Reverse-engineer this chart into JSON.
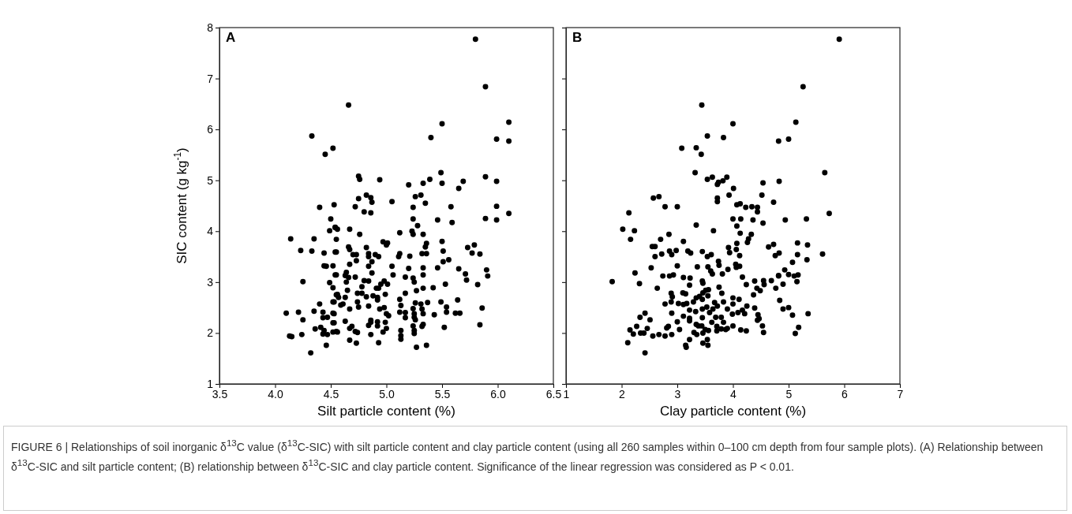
{
  "chart_data": [
    {
      "type": "scatter",
      "title": "A",
      "xlabel": "Silt particle content (%)",
      "ylabel": "SIC content (g kg$^{-1}$)",
      "marker": "circle",
      "grid": false,
      "xlim": [
        3.5,
        6.5
      ],
      "xticks": [
        3.5,
        {
          "value": 4,
          "label": "4.0"
        },
        4.5,
        {
          "value": 5,
          "label": "5.0"
        },
        5.5,
        {
          "value": 6,
          "label": "6.0"
        },
        6.5
      ],
      "ylim": [
        1,
        8
      ],
      "yticks": [
        1,
        2,
        3,
        4,
        5,
        6,
        7,
        8
      ],
      "series": [
        {
          "color": "#000000",
          "x": [
            4.33,
            4.52,
            4.45,
            4.4,
            4.53,
            4.5,
            4.49,
            4.54,
            4.14,
            4.35,
            4.23,
            4.33,
            4.44,
            4.54,
            4.44,
            4.46,
            4.52,
            4.54,
            4.25,
            4.49,
            4.52,
            4.55,
            4.4,
            4.52,
            4.1,
            4.21,
            4.35,
            4.43,
            4.25,
            4.43,
            4.47,
            4.52,
            4.52,
            4.36,
            4.41,
            4.44,
            4.52,
            4.55,
            4.13,
            4.15,
            4.24,
            4.43,
            4.47,
            4.46,
            4.32,
            5.8,
            5.89,
            4.66,
            5.5,
            6.1,
            5.4,
            5.99,
            6.1,
            4.75,
            4.76,
            4.94,
            5.2,
            5.33,
            5.39,
            5.49,
            5.5,
            5.65,
            5.69,
            5.89,
            5.99,
            4.75,
            4.82,
            4.86,
            4.87,
            5.05,
            4.72,
            4.8,
            4.86,
            5.26,
            5.31,
            5.35,
            5.24,
            5.58,
            5.99,
            6.1,
            5.89,
            5.99,
            5.46,
            5.59,
            5.24,
            5.28,
            5.12,
            5.23,
            5.24,
            5.33,
            5.5,
            5.36,
            5.35,
            5.32,
            5.36,
            5.51,
            5.73,
            5.79,
            5.77,
            5.84,
            4.67,
            4.76,
            4.54,
            4.56,
            4.55,
            4.66,
            4.67,
            4.7,
            4.73,
            4.73,
            4.82,
            4.84,
            4.84,
            4.87,
            4.9,
            4.93,
            4.97,
            5.0,
            5.01,
            5.12,
            5.11,
            5.21,
            4.55,
            4.67,
            4.84,
            4.87,
            5.05,
            5.06,
            5.2,
            5.33,
            5.46,
            5.51,
            5.56,
            5.65,
            5.71,
            5.72,
            5.9,
            5.91,
            5.82,
            4.55,
            4.63,
            4.64,
            4.66,
            4.64,
            4.72,
            4.8,
            4.84,
            4.78,
            4.95,
            4.98,
            5.01,
            4.91,
            4.93,
            5.17,
            5.24,
            5.25,
            5.33,
            5.33,
            5.42,
            5.53,
            5.27,
            5.17,
            4.65,
            4.56,
            4.57,
            4.63,
            4.74,
            4.78,
            4.82,
            4.88,
            4.92,
            4.99,
            4.92,
            4.53,
            4.59,
            4.61,
            4.74,
            4.75,
            4.84,
            4.67,
            4.94,
            4.98,
            5.0,
            5.02,
            5.12,
            5.13,
            5.24,
            5.26,
            5.31,
            5.32,
            5.37,
            5.49,
            5.54,
            5.54,
            5.64,
            5.62,
            5.66,
            5.86,
            5.12,
            5.17,
            5.17,
            5.25,
            5.25,
            5.33,
            5.43,
            5.26,
            4.53,
            4.53,
            4.63,
            4.67,
            4.69,
            4.72,
            4.74,
            4.84,
            4.86,
            4.86,
            4.92,
            4.92,
            4.97,
            4.99,
            5.0,
            5.13,
            5.13,
            5.13,
            5.24,
            5.25,
            5.25,
            5.33,
            5.32,
            5.52,
            5.84,
            4.56,
            4.67,
            4.73,
            4.86,
            4.93,
            5.27,
            5.36
          ],
          "values": [
            5.87,
            5.63,
            5.51,
            4.47,
            4.52,
            4.24,
            4.01,
            4.08,
            3.85,
            3.85,
            3.62,
            3.61,
            3.57,
            3.59,
            3.32,
            3.31,
            3.32,
            3.14,
            3.01,
            2.99,
            2.89,
            2.75,
            2.57,
            2.61,
            2.39,
            2.41,
            2.43,
            2.41,
            2.26,
            2.3,
            2.31,
            2.39,
            2.2,
            2.08,
            2.11,
            2.05,
            2.02,
            2.03,
            1.94,
            1.93,
            1.97,
            1.98,
            1.97,
            1.76,
            1.61,
            7.77,
            6.84,
            6.48,
            6.11,
            6.14,
            5.84,
            5.81,
            5.77,
            5.08,
            5.02,
            5.01,
            4.91,
            4.94,
            5.02,
            5.15,
            4.94,
            4.84,
            4.98,
            5.07,
            4.98,
            4.64,
            4.71,
            4.66,
            4.57,
            4.58,
            4.48,
            4.38,
            4.36,
            4.68,
            4.71,
            4.55,
            4.47,
            4.48,
            4.49,
            4.35,
            4.25,
            4.22,
            4.22,
            4.17,
            4.24,
            4.11,
            3.97,
            4.0,
            3.94,
            3.94,
            3.8,
            3.76,
            3.69,
            3.56,
            3.56,
            3.61,
            3.68,
            3.73,
            3.57,
            3.55,
            4.04,
            3.94,
            4.07,
            4.04,
            3.84,
            3.69,
            3.64,
            3.54,
            3.54,
            3.42,
            3.68,
            3.56,
            3.5,
            3.4,
            3.54,
            3.5,
            3.79,
            3.73,
            3.77,
            3.56,
            3.5,
            3.51,
            3.59,
            3.35,
            3.31,
            3.18,
            3.31,
            3.14,
            3.27,
            3.28,
            3.28,
            3.4,
            3.44,
            3.26,
            3.16,
            3.04,
            3.24,
            3.12,
            2.95,
            3.14,
            3.13,
            3.19,
            3.09,
            3.0,
            3.1,
            3.03,
            3.02,
            2.91,
            2.96,
            3.02,
            2.96,
            2.88,
            2.88,
            3.1,
            3.08,
            3.0,
            3.14,
            2.88,
            2.89,
            2.96,
            2.83,
            2.78,
            2.84,
            2.76,
            2.7,
            2.7,
            2.78,
            2.78,
            2.71,
            2.73,
            2.7,
            2.76,
            2.65,
            2.61,
            2.55,
            2.57,
            2.61,
            2.51,
            2.53,
            2.47,
            2.47,
            2.5,
            2.38,
            2.34,
            2.66,
            2.54,
            2.48,
            2.59,
            2.57,
            2.47,
            2.6,
            2.61,
            2.51,
            2.41,
            2.65,
            2.39,
            2.39,
            2.49,
            2.41,
            2.4,
            2.3,
            2.38,
            2.31,
            2.38,
            2.36,
            2.26,
            2.38,
            2.2,
            2.23,
            2.09,
            2.13,
            2.03,
            2.01,
            2.15,
            2.25,
            2.21,
            2.22,
            2.14,
            2.02,
            2.21,
            2.09,
            2.05,
            1.95,
            1.88,
            2.14,
            2.05,
            1.99,
            2.17,
            2.13,
            2.11,
            2.16,
            2.02,
            1.86,
            1.8,
            1.97,
            1.81,
            1.72,
            1.76
          ]
        }
      ],
      "annotations": [
        "FIGURE 6 | Relationships of soil inorganic δ$^{13}$C value (δ$^{13}$C-SIC) with silt particle content and clay particle content (using all 260 samples within 0–100 cm depth from four sample plots). (A) Relationship between δ$^{13}$C-SIC and silt particle content; (B) relationship between δ$^{13}$C-SIC and clay particle content. Significance of the linear regression was considered as P < 0.01."
      ]
    },
    {
      "type": "scatter",
      "title": "B",
      "xlabel": "Clay particle content (%)",
      "marker": "circle",
      "grid": false,
      "tick_labels": "x",
      "xlim": [
        1,
        7
      ],
      "xticks": [
        1,
        2,
        3,
        4,
        5,
        6,
        7
      ],
      "ylim": [
        1,
        8
      ],
      "yticks": [
        1,
        2,
        3,
        4,
        5,
        6,
        7,
        8
      ],
      "series": [
        {
          "color": "#000000",
          "x": [
            3.44,
            4.0,
            3.54,
            3.83,
            4.82,
            3.08,
            3.34,
            3.43,
            3.32,
            3.54,
            3.63,
            3.72,
            3.74,
            3.82,
            3.89,
            4.01,
            4.54,
            4.83,
            2.57,
            2.67,
            2.78,
            3.0,
            3.72,
            3.72,
            3.93,
            4.07,
            4.13,
            4.23,
            4.34,
            4.44,
            4.44,
            4.52,
            4.73,
            2.13,
            2.02,
            2.23,
            2.16,
            3.34,
            3.65,
            4.0,
            4.14,
            4.36,
            4.54,
            4.07,
            4.13,
            4.33,
            4.28,
            4.26,
            2.7,
            2.85,
            2.55,
            2.6,
            2.6,
            2.72,
            2.86,
            2.9,
            2.98,
            3.11,
            3.19,
            3.24,
            3.45,
            3.54,
            3.61,
            3.74,
            3.75,
            3.92,
            3.94,
            4.06,
            4.12,
            4.07,
            4.64,
            4.73,
            4.83,
            4.76,
            2.53,
            2.24,
            2.32,
            1.83,
            2.64,
            2.74,
            2.86,
            2.93,
            3.0,
            3.11,
            3.23,
            3.22,
            3.36,
            3.55,
            3.6,
            3.63,
            3.81,
            3.91,
            4.05,
            4.06,
            4.12,
            4.17,
            4.24,
            4.39,
            4.55,
            4.56,
            4.69,
            4.82,
            3.45,
            3.46,
            3.75,
            4.43,
            4.49,
            4.37,
            4.77,
            2.89,
            2.91,
            2.78,
            2.89,
            3.02,
            3.1,
            3.15,
            3.11,
            3.17,
            3.22,
            3.29,
            3.34,
            3.4,
            3.46,
            3.51,
            3.56,
            3.45,
            3.55,
            3.67,
            3.72,
            3.8,
            3.83,
            4.0,
            4.11,
            4.0,
            3.9,
            4.17,
            4.25,
            4.39,
            3.45,
            3.53,
            3.58,
            3.64,
            2.9,
            3.33,
            3.99,
            4.09,
            4.21,
            4.45,
            3.11,
            3.22,
            3.22,
            3.45,
            3.69,
            3.79,
            3.0,
            3.04,
            3.34,
            3.38,
            3.44,
            3.62,
            3.71,
            3.83,
            3.9,
            4.0,
            4.14,
            4.24,
            4.44,
            4.47,
            4.53,
            4.55,
            3.3,
            3.35,
            3.46,
            3.5,
            3.56,
            3.71,
            3.79,
            3.87,
            2.33,
            2.42,
            2.51,
            2.27,
            2.15,
            2.21,
            2.34,
            2.4,
            2.46,
            2.56,
            2.67,
            2.78,
            2.81,
            2.84,
            2.9,
            2.11,
            2.42,
            3.15,
            3.16,
            3.22,
            3.46,
            3.55,
            3.54,
            5.91,
            5.26,
            5.13,
            5.0,
            5.65,
            5.73,
            4.94,
            5.32,
            5.16,
            5.34,
            5.16,
            5.61,
            5.33,
            5.07,
            4.93,
            5.0,
            4.82,
            5.1,
            5.17,
            5.15,
            4.9,
            4.84,
            4.9,
            5.0,
            5.07,
            5.35,
            5.18,
            5.12
          ],
          "values": [
            6.48,
            6.11,
            5.87,
            5.84,
            5.77,
            5.63,
            5.64,
            5.51,
            5.15,
            5.02,
            5.06,
            4.92,
            4.96,
            4.99,
            5.06,
            4.84,
            4.95,
            4.98,
            4.65,
            4.68,
            4.48,
            4.48,
            4.65,
            4.58,
            4.71,
            4.52,
            4.54,
            4.47,
            4.48,
            4.47,
            4.38,
            4.71,
            4.57,
            4.36,
            4.04,
            4.01,
            3.84,
            4.12,
            4.01,
            4.24,
            4.24,
            4.22,
            4.16,
            4.1,
            3.96,
            3.94,
            3.85,
            3.78,
            3.84,
            3.94,
            3.7,
            3.7,
            3.5,
            3.55,
            3.61,
            3.54,
            3.62,
            3.8,
            3.61,
            3.57,
            3.6,
            3.5,
            3.54,
            3.41,
            3.33,
            3.68,
            3.58,
            3.64,
            3.52,
            3.76,
            3.69,
            3.74,
            3.57,
            3.52,
            3.28,
            3.18,
            2.97,
            3.01,
            2.88,
            3.12,
            3.12,
            3.14,
            3.32,
            3.09,
            3.08,
            2.94,
            3.3,
            3.3,
            3.22,
            3.16,
            3.16,
            3.25,
            3.35,
            3.29,
            3.31,
            3.1,
            2.95,
            3.02,
            3.03,
            2.95,
            3.03,
            3.12,
            3.02,
            2.98,
            2.9,
            2.88,
            2.83,
            2.75,
            2.88,
            2.78,
            2.71,
            2.57,
            2.61,
            2.58,
            2.79,
            2.77,
            2.56,
            2.58,
            2.45,
            2.61,
            2.69,
            2.72,
            2.79,
            2.84,
            2.85,
            2.66,
            2.73,
            2.6,
            2.53,
            2.78,
            2.61,
            2.69,
            2.66,
            2.57,
            2.47,
            2.45,
            2.53,
            2.49,
            2.47,
            2.51,
            2.4,
            2.47,
            2.39,
            2.42,
            2.37,
            2.4,
            2.38,
            2.36,
            2.33,
            2.29,
            2.24,
            2.3,
            2.31,
            2.31,
            2.22,
            2.07,
            2.17,
            2.14,
            2.14,
            2.21,
            2.13,
            2.21,
            2.09,
            2.14,
            2.06,
            2.04,
            2.25,
            2.28,
            2.14,
            2.01,
            2.01,
            1.97,
            2.0,
            2.07,
            2.05,
            2.04,
            2.08,
            2.07,
            2.31,
            2.39,
            2.26,
            2.13,
            2.06,
            1.98,
            2.0,
            2.0,
            2.09,
            1.94,
            1.97,
            1.94,
            2.1,
            2.13,
            1.97,
            1.81,
            1.61,
            1.76,
            1.72,
            1.87,
            1.8,
            1.76,
            1.87,
            7.77,
            6.84,
            6.14,
            5.81,
            5.15,
            4.35,
            4.22,
            4.24,
            3.77,
            3.73,
            3.54,
            3.55,
            3.44,
            3.39,
            3.24,
            3.15,
            3.13,
            3.12,
            3.14,
            3.01,
            2.96,
            2.64,
            2.47,
            2.5,
            2.35,
            2.38,
            2.11,
            1.99
          ]
        }
      ]
    }
  ]
}
